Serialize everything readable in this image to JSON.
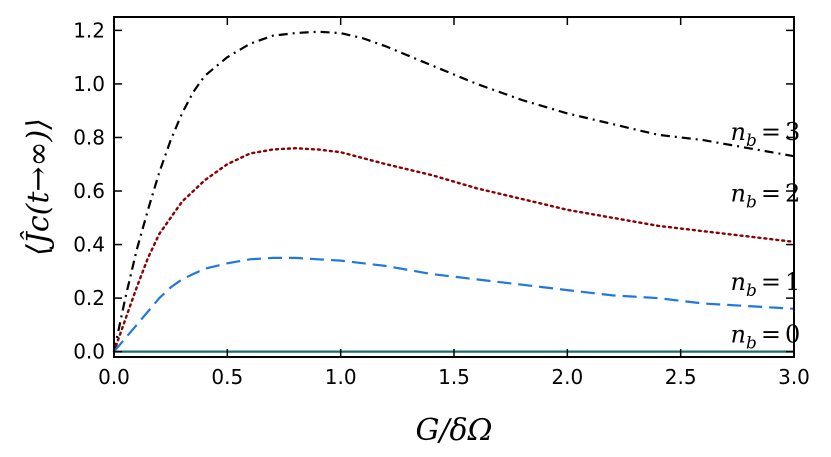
{
  "chart_data": {
    "type": "line",
    "title": "",
    "xlabel": "G/δΩ",
    "ylabel": "⟨Ĵc(t→∞)⟩",
    "xlim": [
      0.0,
      3.0
    ],
    "ylim": [
      -0.02,
      1.25
    ],
    "grid": false,
    "x_ticks": [
      0.0,
      0.5,
      1.0,
      1.5,
      2.0,
      2.5,
      3.0
    ],
    "x_tick_labels": [
      "0.0",
      "0.5",
      "1.0",
      "1.5",
      "2.0",
      "2.5",
      "3.0"
    ],
    "y_ticks": [
      0.0,
      0.2,
      0.4,
      0.6,
      0.8,
      1.0,
      1.2
    ],
    "y_tick_labels": [
      "0.0",
      "0.2",
      "0.4",
      "0.6",
      "0.8",
      "1.0",
      "1.2"
    ],
    "series": [
      {
        "name": "nb = 3",
        "label_var": "n",
        "label_sub": "b",
        "label_eq": "=",
        "label_val": "3",
        "label_at": [
          2.72,
          0.79
        ],
        "color": "#000000",
        "style": "dashdot",
        "x": [
          0.0,
          0.05,
          0.1,
          0.15,
          0.2,
          0.25,
          0.3,
          0.35,
          0.4,
          0.5,
          0.6,
          0.7,
          0.8,
          0.9,
          1.0,
          1.1,
          1.2,
          1.4,
          1.6,
          1.8,
          2.0,
          2.2,
          2.4,
          2.6,
          2.8,
          3.0
        ],
        "y": [
          0.0,
          0.2,
          0.38,
          0.53,
          0.67,
          0.79,
          0.89,
          0.97,
          1.03,
          1.1,
          1.15,
          1.18,
          1.19,
          1.195,
          1.19,
          1.17,
          1.14,
          1.07,
          1.0,
          0.94,
          0.89,
          0.85,
          0.81,
          0.79,
          0.76,
          0.73
        ]
      },
      {
        "name": "nb = 2",
        "label_var": "n",
        "label_sub": "b",
        "label_eq": "=",
        "label_val": "2",
        "label_at": [
          2.72,
          0.56
        ],
        "color": "#8b0000",
        "style": "dotted",
        "x": [
          0.0,
          0.05,
          0.1,
          0.15,
          0.2,
          0.3,
          0.4,
          0.5,
          0.6,
          0.7,
          0.8,
          0.9,
          1.0,
          1.2,
          1.4,
          1.6,
          1.8,
          2.0,
          2.2,
          2.4,
          2.6,
          2.8,
          3.0
        ],
        "y": [
          0.0,
          0.12,
          0.24,
          0.35,
          0.44,
          0.56,
          0.64,
          0.7,
          0.74,
          0.755,
          0.76,
          0.755,
          0.745,
          0.7,
          0.66,
          0.61,
          0.57,
          0.53,
          0.5,
          0.47,
          0.45,
          0.43,
          0.41
        ]
      },
      {
        "name": "nb = 1",
        "label_var": "n",
        "label_sub": "b",
        "label_eq": "=",
        "label_val": "1",
        "label_at": [
          2.72,
          0.23
        ],
        "color": "#1f77e0",
        "style": "dashed",
        "x": [
          0.0,
          0.05,
          0.1,
          0.15,
          0.2,
          0.25,
          0.3,
          0.35,
          0.4,
          0.5,
          0.6,
          0.7,
          0.8,
          0.9,
          1.0,
          1.2,
          1.4,
          1.6,
          1.8,
          2.0,
          2.2,
          2.4,
          2.6,
          2.8,
          3.0
        ],
        "y": [
          0.0,
          0.05,
          0.1,
          0.15,
          0.2,
          0.24,
          0.27,
          0.29,
          0.31,
          0.33,
          0.345,
          0.35,
          0.35,
          0.345,
          0.34,
          0.32,
          0.29,
          0.27,
          0.25,
          0.23,
          0.21,
          0.2,
          0.18,
          0.17,
          0.16
        ]
      },
      {
        "name": "nb = 0",
        "label_var": "n",
        "label_sub": "b",
        "label_eq": "=",
        "label_val": "0",
        "label_at": [
          2.72,
          0.035
        ],
        "color": "#1a6e6e",
        "style": "solid",
        "x": [
          0.0,
          3.0
        ],
        "y": [
          0.0,
          0.0
        ]
      }
    ]
  }
}
